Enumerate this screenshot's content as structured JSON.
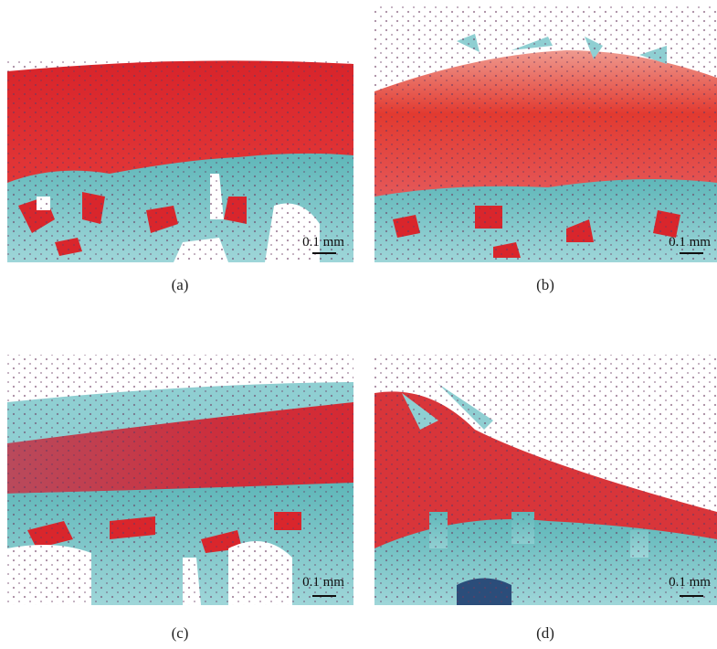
{
  "panels": [
    {
      "label": "(a)",
      "scale_bar": "0.1 mm"
    },
    {
      "label": "(b)",
      "scale_bar": "0.1 mm"
    },
    {
      "label": "(c)",
      "scale_bar": "0.1 mm"
    },
    {
      "label": "(d)",
      "scale_bar": "0.1 mm"
    }
  ]
}
